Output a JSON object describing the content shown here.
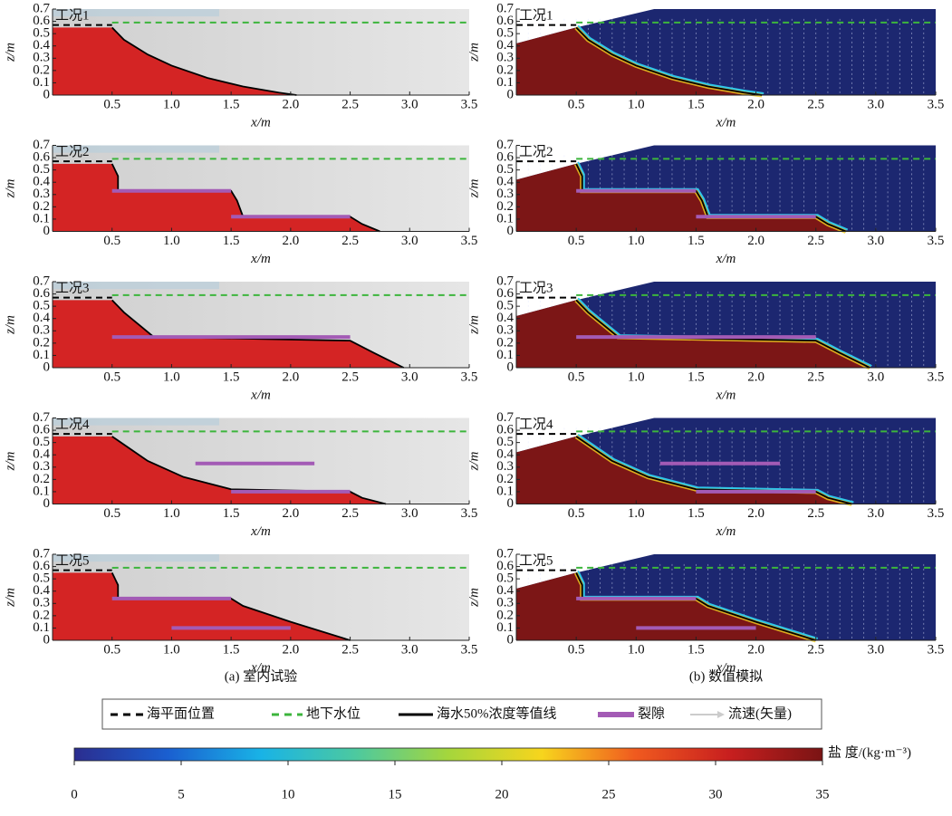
{
  "chart_data": {
    "type": "profile",
    "xlabel": "x/m",
    "ylabel": "z/m",
    "xlim": [
      0,
      3.5
    ],
    "ylim": [
      0,
      0.7
    ],
    "xticks": [
      0.5,
      {
        "value": 1,
        "label": "1.0"
      },
      1.5,
      {
        "value": 2,
        "label": "2.0"
      },
      2.5,
      {
        "value": 3,
        "label": "3.0"
      },
      3.5
    ],
    "yticks": [
      0,
      0.1,
      0.2,
      0.3,
      0.4,
      0.5,
      0.6,
      0.7
    ],
    "sea_level": 0.57,
    "water_table": 0.59,
    "surface": {
      "x": [
        0,
        0.5,
        1.15,
        3.5
      ],
      "y": [
        0.42,
        0.55,
        0.7,
        0.7
      ]
    },
    "cases": [
      {
        "label": "工况1",
        "interface": {
          "x": [
            0.5,
            0.6,
            0.8,
            1.0,
            1.3,
            1.6,
            1.9,
            2.05
          ],
          "y": [
            0.55,
            0.45,
            0.33,
            0.24,
            0.14,
            0.07,
            0.02,
            0
          ]
        },
        "fractures": []
      },
      {
        "label": "工况2",
        "interface": {
          "x": [
            0.5,
            0.55,
            0.55,
            1.5,
            1.55,
            1.6,
            2.5,
            2.6,
            2.75
          ],
          "y": [
            0.55,
            0.45,
            0.33,
            0.33,
            0.25,
            0.12,
            0.12,
            0.06,
            0
          ]
        },
        "fractures": [
          {
            "x": [
              0.5,
              1.5
            ],
            "z": 0.33
          },
          {
            "x": [
              1.5,
              2.5
            ],
            "z": 0.12
          }
        ]
      },
      {
        "label": "工况3",
        "interface": {
          "x": [
            0.5,
            0.6,
            0.75,
            0.85,
            2.5,
            2.7,
            2.95
          ],
          "y": [
            0.55,
            0.45,
            0.33,
            0.25,
            0.22,
            0.12,
            0
          ]
        },
        "fractures": [
          {
            "x": [
              0.5,
              2.5
            ],
            "z": 0.25
          }
        ]
      },
      {
        "label": "工况4",
        "interface": {
          "x": [
            0.5,
            0.8,
            1.1,
            1.5,
            2.5,
            2.6,
            2.8
          ],
          "y": [
            0.55,
            0.35,
            0.22,
            0.12,
            0.1,
            0.05,
            0
          ]
        },
        "fractures": [
          {
            "x": [
              1.2,
              2.2
            ],
            "z": 0.33
          },
          {
            "x": [
              1.5,
              2.5
            ],
            "z": 0.1
          }
        ]
      },
      {
        "label": "工况5",
        "interface": {
          "x": [
            0.5,
            0.55,
            0.55,
            1.5,
            1.6,
            2.0,
            2.5
          ],
          "y": [
            0.55,
            0.45,
            0.34,
            0.34,
            0.28,
            0.15,
            0
          ]
        },
        "fractures": [
          {
            "x": [
              0.5,
              1.5
            ],
            "z": 0.34
          },
          {
            "x": [
              1.0,
              2.0
            ],
            "z": 0.1
          }
        ]
      }
    ],
    "captions": [
      "(a) 室内试验",
      "(b) 数值模拟"
    ]
  },
  "legend": [
    "海平面位置",
    "地下水位",
    "海水50%浓度等值线",
    "裂隙",
    "流速(矢量)"
  ],
  "colorbar": {
    "type": "colorbar",
    "label": "盐 度/(kg·m⁻³)",
    "xlim": [
      0,
      35
    ],
    "xticks": [
      0,
      5,
      10,
      15,
      20,
      25,
      30,
      35
    ],
    "colors": [
      "#2b2d8f",
      "#1a5fd0",
      "#19b3e6",
      "#4cc9a0",
      "#a5d63c",
      "#f7d51d",
      "#f05a1f",
      "#c81f1f",
      "#7a1414"
    ]
  }
}
